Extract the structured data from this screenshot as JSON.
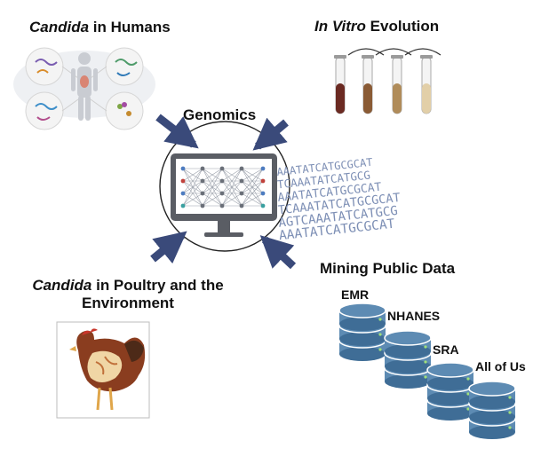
{
  "panels": {
    "humans": {
      "title_italic": "Candida",
      "title_rest": " in Humans"
    },
    "invitro": {
      "title_italic": "In Vitro",
      "title_rest": " Evolution"
    },
    "center": {
      "title": "Genomics"
    },
    "poultry": {
      "title_italic": "Candida",
      "title_rest_line1": " in Poultry and the",
      "title_line2": "Environment"
    },
    "mining": {
      "title": "Mining Public Data",
      "databases": [
        "EMR",
        "NHANES",
        "SRA",
        "All of Us"
      ]
    }
  },
  "sequence_lines": [
    "AAATATCATGCGCAT",
    "TCAAATATCATGCG",
    "AAATATCATGCGCAT",
    "TCAAATATCATGCGCAT",
    "AGTCAAATATCATGCG",
    "AAATATCATGCGCAT"
  ],
  "colors": {
    "arrow": "#3a4a7a",
    "database": "#5d8bb3",
    "database_dark": "#3f6d96",
    "sequence": "#7d8fb5",
    "tubes": [
      "#6b2a22",
      "#8a5b35",
      "#b08c5a",
      "#e2cfa8"
    ]
  }
}
